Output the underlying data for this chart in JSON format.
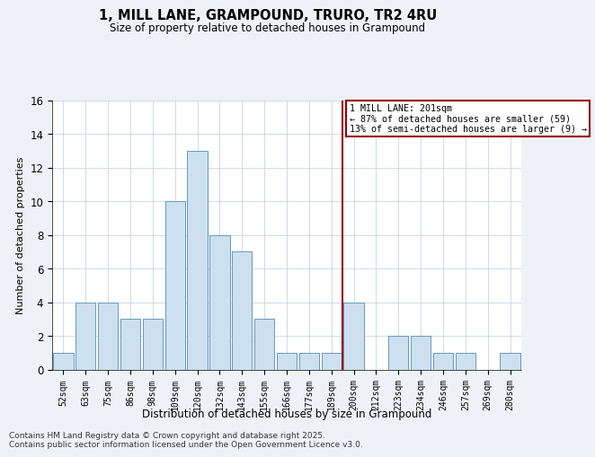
{
  "title": "1, MILL LANE, GRAMPOUND, TRURO, TR2 4RU",
  "subtitle": "Size of property relative to detached houses in Grampound",
  "xlabel": "Distribution of detached houses by size in Grampound",
  "ylabel": "Number of detached properties",
  "categories": [
    "52sqm",
    "63sqm",
    "75sqm",
    "86sqm",
    "98sqm",
    "109sqm",
    "120sqm",
    "132sqm",
    "143sqm",
    "155sqm",
    "166sqm",
    "177sqm",
    "189sqm",
    "200sqm",
    "212sqm",
    "223sqm",
    "234sqm",
    "246sqm",
    "257sqm",
    "269sqm",
    "280sqm"
  ],
  "values": [
    1,
    4,
    4,
    3,
    3,
    10,
    13,
    8,
    7,
    3,
    1,
    1,
    1,
    4,
    0,
    2,
    2,
    1,
    1,
    0,
    1
  ],
  "bar_color": "#cce0f0",
  "bar_edge_color": "#6699bb",
  "marker_index": 13,
  "marker_color": "#990000",
  "annotation_title": "1 MILL LANE: 201sqm",
  "annotation_line1": "← 87% of detached houses are smaller (59)",
  "annotation_line2": "13% of semi-detached houses are larger (9) →",
  "ylim": [
    0,
    16
  ],
  "yticks": [
    0,
    2,
    4,
    6,
    8,
    10,
    12,
    14,
    16
  ],
  "footnote1": "Contains HM Land Registry data © Crown copyright and database right 2025.",
  "footnote2": "Contains public sector information licensed under the Open Government Licence v3.0.",
  "background_color": "#eef2f7",
  "plot_bg_color": "#ffffff",
  "grid_color": "#c8d4e0"
}
